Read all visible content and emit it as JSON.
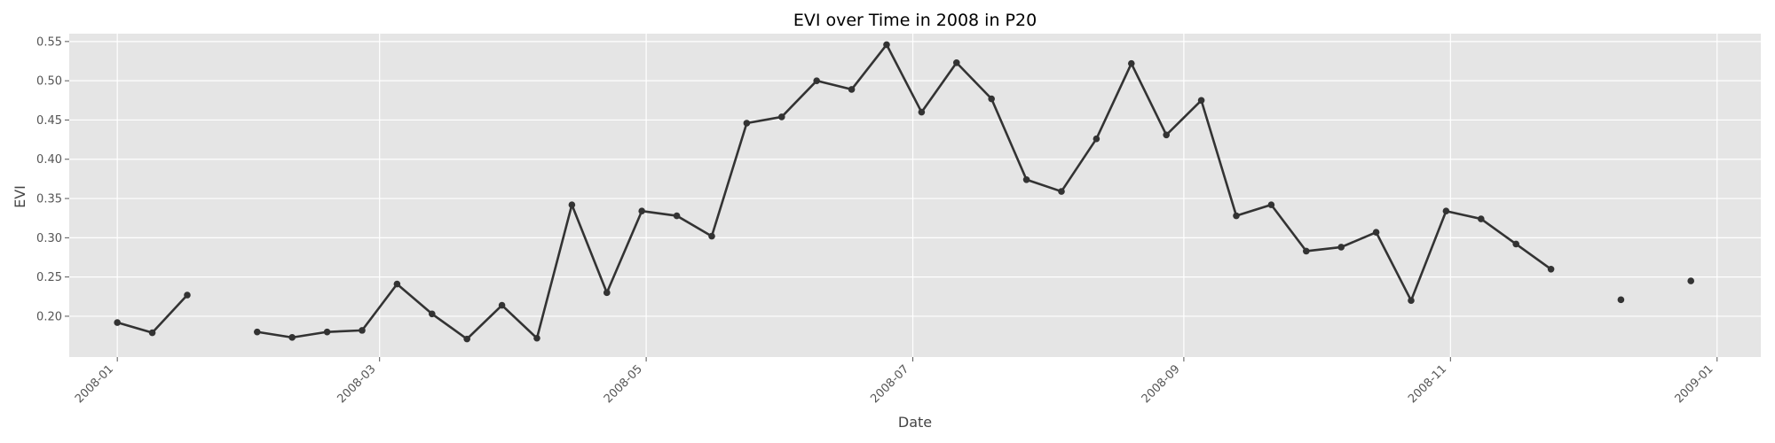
{
  "chart_data": {
    "type": "line",
    "title": "EVI over Time in 2008 in P20",
    "xlabel": "Date",
    "ylabel": "EVI",
    "x_axis_type": "date",
    "xlim": [
      "2007-12-21",
      "2009-01-11"
    ],
    "ylim": [
      0.148,
      0.56
    ],
    "x_ticks": [
      "2008-01-01",
      "2008-03-01",
      "2008-05-01",
      "2008-07-01",
      "2008-09-01",
      "2008-11-01",
      "2009-01-01"
    ],
    "x_tick_labels": [
      "2008-01",
      "2008-03",
      "2008-05",
      "2008-07",
      "2008-09",
      "2008-11",
      "2009-01"
    ],
    "y_ticks": [
      0.2,
      0.25,
      0.3,
      0.35,
      0.4,
      0.45,
      0.5,
      0.55
    ],
    "y_tick_labels": [
      "0.20",
      "0.25",
      "0.30",
      "0.35",
      "0.40",
      "0.45",
      "0.50",
      "0.55"
    ],
    "grid": true,
    "background_color": "#e5e5e5",
    "grid_color": "#ffffff",
    "line_color": "#333333",
    "series": [
      {
        "x": [
          "2008-01-01",
          "2008-01-09",
          "2008-01-17",
          "2008-01-25",
          "2008-02-02",
          "2008-02-10",
          "2008-02-18",
          "2008-02-26",
          "2008-03-05",
          "2008-03-13",
          "2008-03-21",
          "2008-03-29",
          "2008-04-06",
          "2008-04-14",
          "2008-04-22",
          "2008-04-30",
          "2008-05-08",
          "2008-05-16",
          "2008-05-24",
          "2008-06-01",
          "2008-06-09",
          "2008-06-17",
          "2008-06-25",
          "2008-07-03",
          "2008-07-11",
          "2008-07-19",
          "2008-07-27",
          "2008-08-04",
          "2008-08-12",
          "2008-08-20",
          "2008-08-28",
          "2008-09-05",
          "2008-09-13",
          "2008-09-21",
          "2008-09-29",
          "2008-10-07",
          "2008-10-15",
          "2008-10-23",
          "2008-10-31",
          "2008-11-08",
          "2008-11-16",
          "2008-11-24",
          "2008-12-02",
          "2008-12-10",
          "2008-12-18",
          "2008-12-26"
        ],
        "values": [
          0.192,
          0.179,
          0.227,
          null,
          0.18,
          0.173,
          0.18,
          0.182,
          0.241,
          0.203,
          0.171,
          0.214,
          0.172,
          0.342,
          0.23,
          0.334,
          0.328,
          0.302,
          0.446,
          0.454,
          0.5,
          0.489,
          0.546,
          0.46,
          0.523,
          0.477,
          0.374,
          0.359,
          0.426,
          0.522,
          0.431,
          0.475,
          0.328,
          0.342,
          0.283,
          0.288,
          0.307,
          0.22,
          0.334,
          0.324,
          0.292,
          0.26,
          null,
          0.221,
          null,
          0.245
        ]
      }
    ]
  }
}
